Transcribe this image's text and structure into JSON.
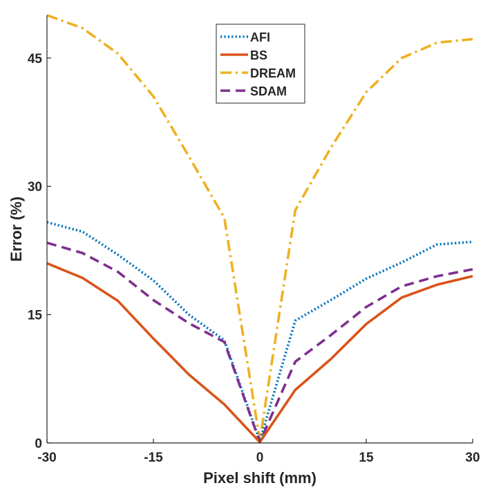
{
  "chart_data": {
    "type": "line",
    "title": "",
    "xlabel": "Pixel shift (mm)",
    "ylabel": "Error (%)",
    "xlim": [
      -30,
      30
    ],
    "ylim": [
      0,
      50
    ],
    "xticks": [
      -30,
      -15,
      0,
      15,
      30
    ],
    "yticks": [
      0,
      15,
      30,
      45
    ],
    "xtick_labels": [
      "-30",
      "-15",
      "0",
      "15",
      "30"
    ],
    "ytick_labels": [
      "0",
      "15",
      "30",
      "45"
    ],
    "grid": false,
    "legend_position": "top-center",
    "series": [
      {
        "name": "AFI",
        "color": "#0072BD",
        "style": "dotted",
        "x": [
          -30,
          -25,
          -20,
          -15,
          -10,
          -5,
          0,
          5,
          10,
          15,
          20,
          25,
          30
        ],
        "y": [
          25.8,
          24.7,
          22.0,
          19.0,
          15.0,
          12.0,
          0.2,
          14.3,
          16.7,
          19.2,
          21.1,
          23.2,
          23.5
        ]
      },
      {
        "name": "BS",
        "color": "#D95319",
        "style": "solid",
        "x": [
          -30,
          -25,
          -20,
          -15,
          -10,
          -5,
          0,
          5,
          10,
          15,
          20,
          25,
          30
        ],
        "y": [
          21.0,
          19.3,
          16.6,
          12.2,
          8.0,
          4.5,
          0.1,
          6.2,
          9.8,
          13.9,
          17.0,
          18.5,
          19.5
        ]
      },
      {
        "name": "DREAM",
        "color": "#EDB120",
        "style": "dashdot",
        "x": [
          -30,
          -25,
          -20,
          -15,
          -10,
          -5,
          0,
          5,
          10,
          15,
          20,
          25,
          30
        ],
        "y": [
          50.0,
          48.5,
          45.5,
          40.5,
          33.5,
          26.3,
          0.3,
          27.2,
          34.5,
          41.0,
          45.0,
          46.8,
          47.2
        ]
      },
      {
        "name": "SDAM",
        "color": "#7E2F8E",
        "style": "dashed",
        "x": [
          -30,
          -25,
          -20,
          -15,
          -10,
          -5,
          0,
          5,
          10,
          15,
          20,
          25,
          30
        ],
        "y": [
          23.4,
          22.2,
          20.0,
          16.7,
          14.0,
          11.8,
          0.1,
          9.5,
          12.6,
          15.9,
          18.3,
          19.5,
          20.3
        ]
      }
    ]
  }
}
